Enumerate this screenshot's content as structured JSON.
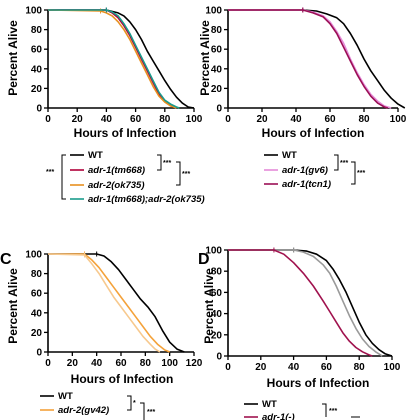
{
  "panels": [
    {
      "id": "A",
      "letter": "",
      "type": "line",
      "xlabel": "Hours of Infection",
      "ylabel": "Percent Alive",
      "xlim": [
        0,
        100
      ],
      "ylim": [
        0,
        100
      ],
      "xticks": [
        "0",
        "20",
        "40",
        "60",
        "80",
        "100"
      ],
      "yticks": [
        "0",
        "20",
        "40",
        "60",
        "80",
        "100"
      ],
      "series": [
        {
          "name": "WT",
          "color": "#000000",
          "points": [
            [
              0,
              100
            ],
            [
              40,
              100
            ],
            [
              48,
              97
            ],
            [
              52,
              94
            ],
            [
              56,
              88
            ],
            [
              60,
              80
            ],
            [
              64,
              70
            ],
            [
              68,
              58
            ],
            [
              72,
              48
            ],
            [
              76,
              38
            ],
            [
              80,
              28
            ],
            [
              84,
              19
            ],
            [
              88,
              11
            ],
            [
              92,
              5
            ],
            [
              96,
              1
            ],
            [
              100,
              0
            ]
          ]
        },
        {
          "name": "adr-1(tm668)",
          "color": "#b0003a",
          "points": [
            [
              0,
              100
            ],
            [
              40,
              100
            ],
            [
              44,
              97
            ],
            [
              48,
              92
            ],
            [
              52,
              84
            ],
            [
              56,
              74
            ],
            [
              60,
              62
            ],
            [
              64,
              50
            ],
            [
              68,
              38
            ],
            [
              72,
              26
            ],
            [
              76,
              14
            ],
            [
              80,
              7
            ],
            [
              84,
              3
            ],
            [
              88,
              0
            ]
          ]
        },
        {
          "name": "adr-2(ok735)",
          "color": "#e8901f",
          "points": [
            [
              0,
              100
            ],
            [
              36,
              99
            ],
            [
              40,
              97
            ],
            [
              44,
              94
            ],
            [
              48,
              88
            ],
            [
              52,
              80
            ],
            [
              56,
              70
            ],
            [
              60,
              58
            ],
            [
              64,
              46
            ],
            [
              68,
              34
            ],
            [
              72,
              22
            ],
            [
              76,
              12
            ],
            [
              80,
              6
            ],
            [
              84,
              2
            ],
            [
              88,
              0
            ]
          ]
        },
        {
          "name": "adr-1(tm668);adr-2(ok735)",
          "color": "#1a9c8c",
          "points": [
            [
              0,
              100
            ],
            [
              40,
              100
            ],
            [
              44,
              98
            ],
            [
              48,
              94
            ],
            [
              52,
              86
            ],
            [
              56,
              76
            ],
            [
              60,
              64
            ],
            [
              64,
              52
            ],
            [
              68,
              40
            ],
            [
              72,
              28
            ],
            [
              76,
              16
            ],
            [
              80,
              8
            ],
            [
              84,
              4
            ],
            [
              88,
              1
            ],
            [
              90,
              0
            ]
          ]
        }
      ],
      "legend_labels": [
        "WT",
        "adr-1(tm668)",
        "adr-2(ok735)",
        "adr-1(tm668);adr-2(ok735)"
      ],
      "significance": {
        "outer": "***",
        "inner_1": "***",
        "inner_2": "***"
      }
    },
    {
      "id": "B",
      "letter": "",
      "type": "line",
      "xlabel": "Hours of Infection",
      "ylabel": "Percent Alive",
      "xlim": [
        0,
        100
      ],
      "ylim": [
        0,
        100
      ],
      "xticks": [
        "0",
        "20",
        "40",
        "60",
        "80",
        "100"
      ],
      "yticks": [
        "0",
        "20",
        "40",
        "60",
        "80",
        "100"
      ],
      "series": [
        {
          "name": "WT",
          "color": "#000000",
          "points": [
            [
              0,
              100
            ],
            [
              44,
              100
            ],
            [
              52,
              99
            ],
            [
              58,
              96
            ],
            [
              64,
              92
            ],
            [
              68,
              86
            ],
            [
              72,
              76
            ],
            [
              76,
              64
            ],
            [
              80,
              50
            ],
            [
              84,
              38
            ],
            [
              88,
              28
            ],
            [
              92,
              18
            ],
            [
              96,
              10
            ],
            [
              100,
              4
            ],
            [
              104,
              0
            ]
          ]
        },
        {
          "name": "adr-1(gv6)",
          "color": "#e58ad8",
          "points": [
            [
              0,
              100
            ],
            [
              44,
              100
            ],
            [
              50,
              98
            ],
            [
              56,
              94
            ],
            [
              60,
              88
            ],
            [
              64,
              78
            ],
            [
              68,
              66
            ],
            [
              72,
              50
            ],
            [
              76,
              36
            ],
            [
              80,
              24
            ],
            [
              84,
              14
            ],
            [
              88,
              7
            ],
            [
              92,
              2
            ],
            [
              96,
              0
            ]
          ]
        },
        {
          "name": "adr-1(tcn1)",
          "color": "#9b0f55",
          "points": [
            [
              0,
              100
            ],
            [
              44,
              100
            ],
            [
              50,
              97
            ],
            [
              56,
              93
            ],
            [
              60,
              86
            ],
            [
              64,
              76
            ],
            [
              68,
              62
            ],
            [
              72,
              48
            ],
            [
              76,
              34
            ],
            [
              80,
              22
            ],
            [
              84,
              12
            ],
            [
              88,
              5
            ],
            [
              92,
              1
            ],
            [
              94,
              0
            ]
          ]
        }
      ],
      "legend_labels": [
        "WT",
        "adr-1(gv6)",
        "adr-1(tcn1)"
      ],
      "significance": {
        "inner": "***",
        "outer": "***"
      }
    },
    {
      "id": "C",
      "letter": "C",
      "type": "line",
      "xlabel": "Hours of Infection",
      "ylabel": "Percent Alive",
      "xlim": [
        0,
        120
      ],
      "ylim": [
        0,
        100
      ],
      "xticks": [
        "0",
        "20",
        "40",
        "60",
        "80",
        "100",
        "120"
      ],
      "yticks": [
        "0",
        "20",
        "40",
        "60",
        "80",
        "100"
      ],
      "series": [
        {
          "name": "WT",
          "color": "#000000",
          "points": [
            [
              0,
              100
            ],
            [
              40,
              100
            ],
            [
              46,
              98
            ],
            [
              52,
              92
            ],
            [
              58,
              84
            ],
            [
              64,
              74
            ],
            [
              70,
              64
            ],
            [
              76,
              54
            ],
            [
              82,
              46
            ],
            [
              88,
              36
            ],
            [
              94,
              22
            ],
            [
              100,
              10
            ],
            [
              106,
              3
            ],
            [
              112,
              0
            ]
          ]
        },
        {
          "name": "adr-2(gv42)",
          "color": "#f4a23a",
          "points": [
            [
              0,
              100
            ],
            [
              30,
              100
            ],
            [
              36,
              94
            ],
            [
              42,
              86
            ],
            [
              48,
              76
            ],
            [
              54,
              66
            ],
            [
              60,
              56
            ],
            [
              66,
              46
            ],
            [
              72,
              36
            ],
            [
              78,
              26
            ],
            [
              84,
              16
            ],
            [
              90,
              8
            ],
            [
              96,
              2
            ],
            [
              100,
              0
            ]
          ]
        },
        {
          "name": "",
          "color": "#f7c98e",
          "points": [
            [
              0,
              100
            ],
            [
              30,
              99
            ],
            [
              36,
              90
            ],
            [
              42,
              80
            ],
            [
              48,
              68
            ],
            [
              54,
              56
            ],
            [
              60,
              46
            ],
            [
              66,
              36
            ],
            [
              72,
              26
            ],
            [
              78,
              16
            ],
            [
              84,
              8
            ],
            [
              88,
              3
            ],
            [
              92,
              0
            ]
          ]
        }
      ],
      "legend_labels": [
        "WT",
        "adr-2(gv42)"
      ],
      "significance": {
        "inner": "*",
        "outer": "***"
      }
    },
    {
      "id": "D",
      "letter": "D",
      "type": "line",
      "xlabel": "Hours of Infection",
      "ylabel": "Percent Alive",
      "xlim": [
        0,
        100
      ],
      "ylim": [
        0,
        100
      ],
      "xticks": [
        "0",
        "20",
        "40",
        "60",
        "80",
        "100"
      ],
      "yticks": [
        "0",
        "20",
        "40",
        "60",
        "80",
        "100"
      ],
      "series": [
        {
          "name": "WT",
          "color": "#000000",
          "points": [
            [
              0,
              100
            ],
            [
              40,
              100
            ],
            [
              48,
              99
            ],
            [
              54,
              96
            ],
            [
              60,
              90
            ],
            [
              64,
              82
            ],
            [
              68,
              72
            ],
            [
              72,
              60
            ],
            [
              76,
              46
            ],
            [
              80,
              32
            ],
            [
              84,
              20
            ],
            [
              88,
              12
            ],
            [
              92,
              6
            ],
            [
              96,
              2
            ],
            [
              100,
              0
            ]
          ]
        },
        {
          "name": "",
          "color": "#9a9a9a",
          "points": [
            [
              0,
              100
            ],
            [
              40,
              100
            ],
            [
              46,
              98
            ],
            [
              52,
              94
            ],
            [
              58,
              86
            ],
            [
              62,
              78
            ],
            [
              66,
              66
            ],
            [
              70,
              52
            ],
            [
              74,
              38
            ],
            [
              78,
              26
            ],
            [
              82,
              16
            ],
            [
              86,
              9
            ],
            [
              90,
              4
            ],
            [
              94,
              0
            ]
          ]
        },
        {
          "name": "adr-1(-)",
          "color": "#a0124e",
          "points": [
            [
              0,
              100
            ],
            [
              28,
              100
            ],
            [
              34,
              96
            ],
            [
              40,
              88
            ],
            [
              46,
              78
            ],
            [
              52,
              66
            ],
            [
              58,
              52
            ],
            [
              62,
              42
            ],
            [
              66,
              32
            ],
            [
              70,
              22
            ],
            [
              74,
              14
            ],
            [
              78,
              8
            ],
            [
              82,
              4
            ],
            [
              86,
              1
            ],
            [
              88,
              0
            ]
          ]
        }
      ],
      "legend_labels": [
        "WT",
        "adr-1(-)"
      ],
      "significance": {
        "inner": "***"
      }
    }
  ],
  "chart_data": [
    {
      "type": "line",
      "title": "",
      "xlabel": "Hours of Infection",
      "ylabel": "Percent Alive",
      "xlim": [
        0,
        100
      ],
      "ylim": [
        0,
        100
      ],
      "series": [
        {
          "name": "WT"
        },
        {
          "name": "adr-1(tm668)"
        },
        {
          "name": "adr-2(ok735)"
        },
        {
          "name": "adr-1(tm668);adr-2(ok735)"
        }
      ]
    },
    {
      "type": "line",
      "title": "",
      "xlabel": "Hours of Infection",
      "ylabel": "Percent Alive",
      "xlim": [
        0,
        100
      ],
      "ylim": [
        0,
        100
      ],
      "series": [
        {
          "name": "WT"
        },
        {
          "name": "adr-1(gv6)"
        },
        {
          "name": "adr-1(tcn1)"
        }
      ]
    },
    {
      "type": "line",
      "title": "",
      "xlabel": "Hours of Infection",
      "ylabel": "Percent Alive",
      "xlim": [
        0,
        120
      ],
      "ylim": [
        0,
        100
      ],
      "series": [
        {
          "name": "WT"
        },
        {
          "name": "adr-2(gv42)"
        }
      ]
    },
    {
      "type": "line",
      "title": "",
      "xlabel": "Hours of Infection",
      "ylabel": "Percent Alive",
      "xlim": [
        0,
        100
      ],
      "ylim": [
        0,
        100
      ],
      "series": [
        {
          "name": "WT"
        },
        {
          "name": "adr-1(-)"
        }
      ]
    }
  ]
}
